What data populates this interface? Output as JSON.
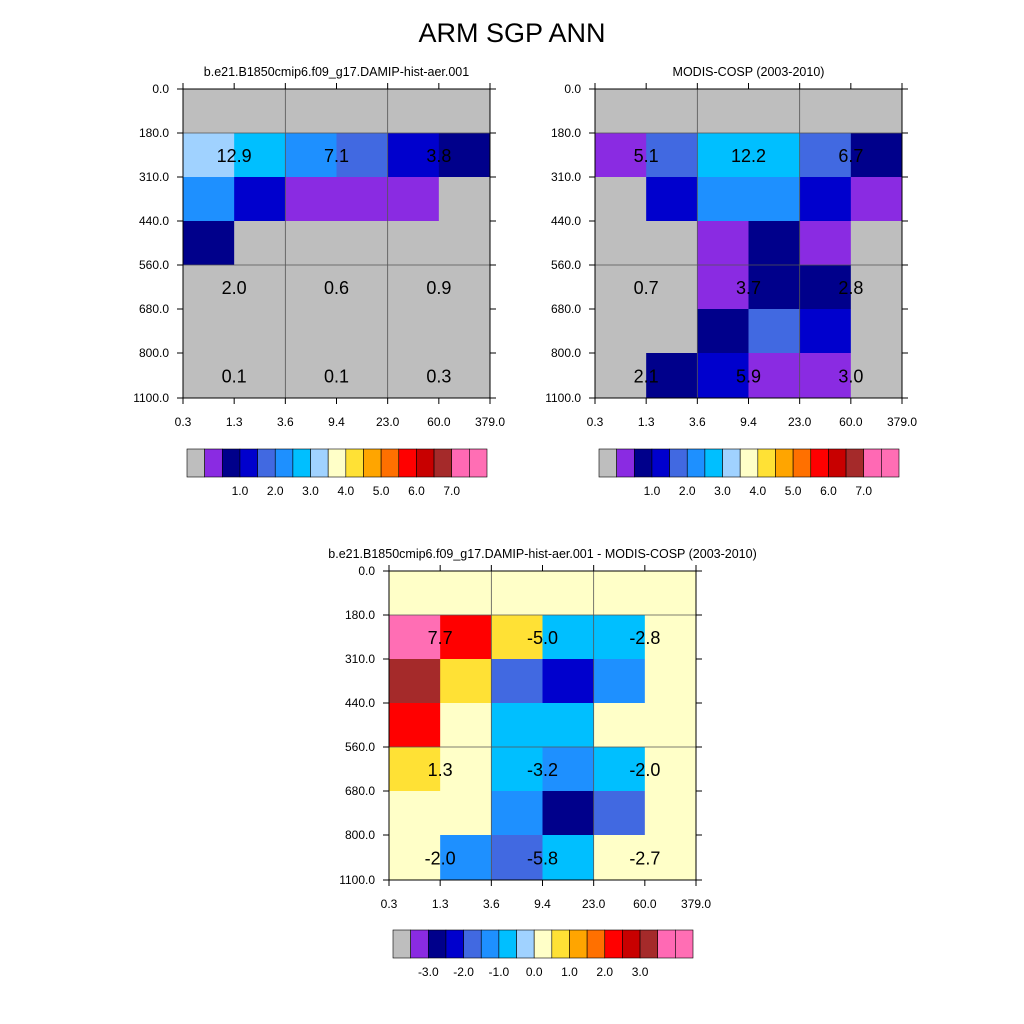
{
  "figure_title": "ARM SGP ANN",
  "chart_data": [
    {
      "type": "heatmap",
      "title": "b.e21.B1850cmip6.f09_g17.DAMIP-hist-aer.001",
      "x_ticks": [
        "0.3",
        "1.3",
        "3.6",
        "9.4",
        "23.0",
        "60.0",
        "379.0"
      ],
      "y_ticks": [
        "0.0",
        "180.0",
        "310.0",
        "440.0",
        "560.0",
        "680.0",
        "800.0",
        "1100.0"
      ],
      "cells": [
        [
          0,
          0,
          0,
          0,
          0,
          0
        ],
        [
          7,
          6,
          5,
          4,
          3,
          2
        ],
        [
          5,
          3,
          1,
          1,
          1,
          0
        ],
        [
          2,
          0,
          0,
          0,
          0,
          0
        ],
        [
          0,
          0,
          0,
          0,
          0,
          0
        ],
        [
          0,
          0,
          0,
          0,
          0,
          0
        ],
        [
          0,
          0,
          0,
          0,
          0,
          0
        ]
      ],
      "grid_rows": [
        1,
        4,
        7
      ],
      "grid_cols": [
        2,
        4
      ],
      "annotation_rows": [
        1,
        4,
        6
      ],
      "annotation_cols": [
        1,
        3,
        5
      ],
      "annotations": [
        [
          "12.9",
          "7.1",
          "3.8"
        ],
        [
          "2.0",
          "0.6",
          "0.9"
        ],
        [
          "0.1",
          "0.1",
          "0.3"
        ]
      ],
      "colorbar_labels": [
        "1.0",
        "2.0",
        "3.0",
        "4.0",
        "5.0",
        "6.0",
        "7.0"
      ]
    },
    {
      "type": "heatmap",
      "title": "MODIS-COSP (2003-2010)",
      "x_ticks": [
        "0.3",
        "1.3",
        "3.6",
        "9.4",
        "23.0",
        "60.0",
        "379.0"
      ],
      "y_ticks": [
        "0.0",
        "180.0",
        "310.0",
        "440.0",
        "560.0",
        "680.0",
        "800.0",
        "1100.0"
      ],
      "cells": [
        [
          0,
          0,
          0,
          0,
          0,
          0
        ],
        [
          1,
          4,
          6,
          6,
          4,
          2
        ],
        [
          0,
          3,
          5,
          5,
          3,
          1
        ],
        [
          0,
          0,
          1,
          2,
          1,
          0
        ],
        [
          0,
          0,
          1,
          2,
          2,
          0
        ],
        [
          0,
          0,
          2,
          4,
          3,
          0
        ],
        [
          0,
          2,
          3,
          1,
          1,
          0
        ]
      ],
      "grid_rows": [
        1,
        4,
        7
      ],
      "grid_cols": [
        2,
        4
      ],
      "annotation_rows": [
        1,
        4,
        6
      ],
      "annotation_cols": [
        1,
        3,
        5
      ],
      "annotations": [
        [
          "5.1",
          "12.2",
          "6.7"
        ],
        [
          "0.7",
          "3.7",
          "2.8"
        ],
        [
          "2.1",
          "5.9",
          "3.0"
        ]
      ],
      "colorbar_labels": [
        "1.0",
        "2.0",
        "3.0",
        "4.0",
        "5.0",
        "6.0",
        "7.0"
      ]
    },
    {
      "type": "heatmap",
      "title": "b.e21.B1850cmip6.f09_g17.DAMIP-hist-aer.001 - MODIS-COSP (2003-2010)",
      "x_ticks": [
        "0.3",
        "1.3",
        "3.6",
        "9.4",
        "23.0",
        "60.0",
        "379.0"
      ],
      "y_ticks": [
        "0.0",
        "180.0",
        "310.0",
        "440.0",
        "560.0",
        "680.0",
        "800.0",
        "1100.0"
      ],
      "cells": [
        [
          8,
          8,
          8,
          8,
          8,
          8
        ],
        [
          16,
          12,
          9,
          6,
          6,
          8
        ],
        [
          14,
          9,
          4,
          3,
          5,
          8
        ],
        [
          12,
          8,
          6,
          6,
          8,
          8
        ],
        [
          9,
          8,
          6,
          5,
          6,
          8
        ],
        [
          8,
          8,
          5,
          2,
          4,
          8
        ],
        [
          8,
          5,
          4,
          6,
          8,
          8
        ]
      ],
      "grid_rows": [
        1,
        4,
        7
      ],
      "grid_cols": [
        2,
        4
      ],
      "annotation_rows": [
        1,
        4,
        6
      ],
      "annotation_cols": [
        1,
        3,
        5
      ],
      "annotations": [
        [
          "7.7",
          "-5.0",
          "-2.8"
        ],
        [
          "1.3",
          "-3.2",
          "-2.0"
        ],
        [
          "-2.0",
          "-5.8",
          "-2.7"
        ]
      ],
      "colorbar_labels": [
        "-3.0",
        "-2.0",
        "-1.0",
        "0.0",
        "1.0",
        "2.0",
        "3.0"
      ]
    }
  ],
  "palette": [
    "#bebebe",
    "#8a2be2",
    "#00008b",
    "#0000cd",
    "#4169e1",
    "#1e90ff",
    "#00bfff",
    "#a0d2ff",
    "#ffffc8",
    "#ffe135",
    "#ffa500",
    "#ff7000",
    "#ff0000",
    "#c80000",
    "#a52a2a",
    "#ff69b4",
    "#ff6eb4"
  ]
}
